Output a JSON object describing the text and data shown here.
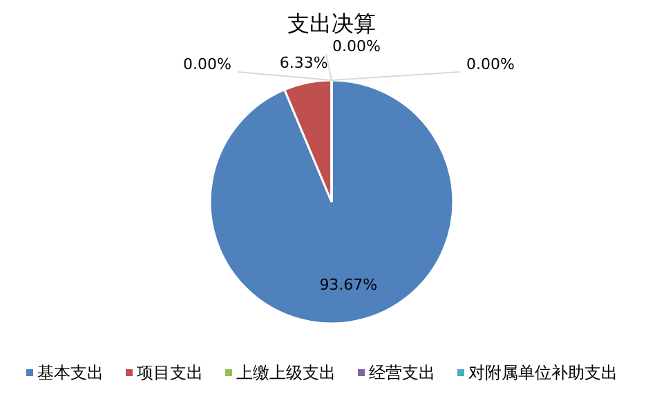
{
  "chart_data": {
    "type": "pie",
    "title": "支出决算",
    "categories": [
      "基本支出",
      "项目支出",
      "上缴上级支出",
      "经营支出",
      "对附属单位补助支出"
    ],
    "values": [
      93.67,
      6.33,
      0,
      0,
      0
    ],
    "colors": [
      "#4f81bd",
      "#c0504d",
      "#9bbb59",
      "#8064a2",
      "#4bacc6"
    ],
    "value_labels": [
      "93.67%",
      "6.33%",
      "0.00%",
      "0.00%",
      "0.00%"
    ],
    "legend": "bottom"
  }
}
